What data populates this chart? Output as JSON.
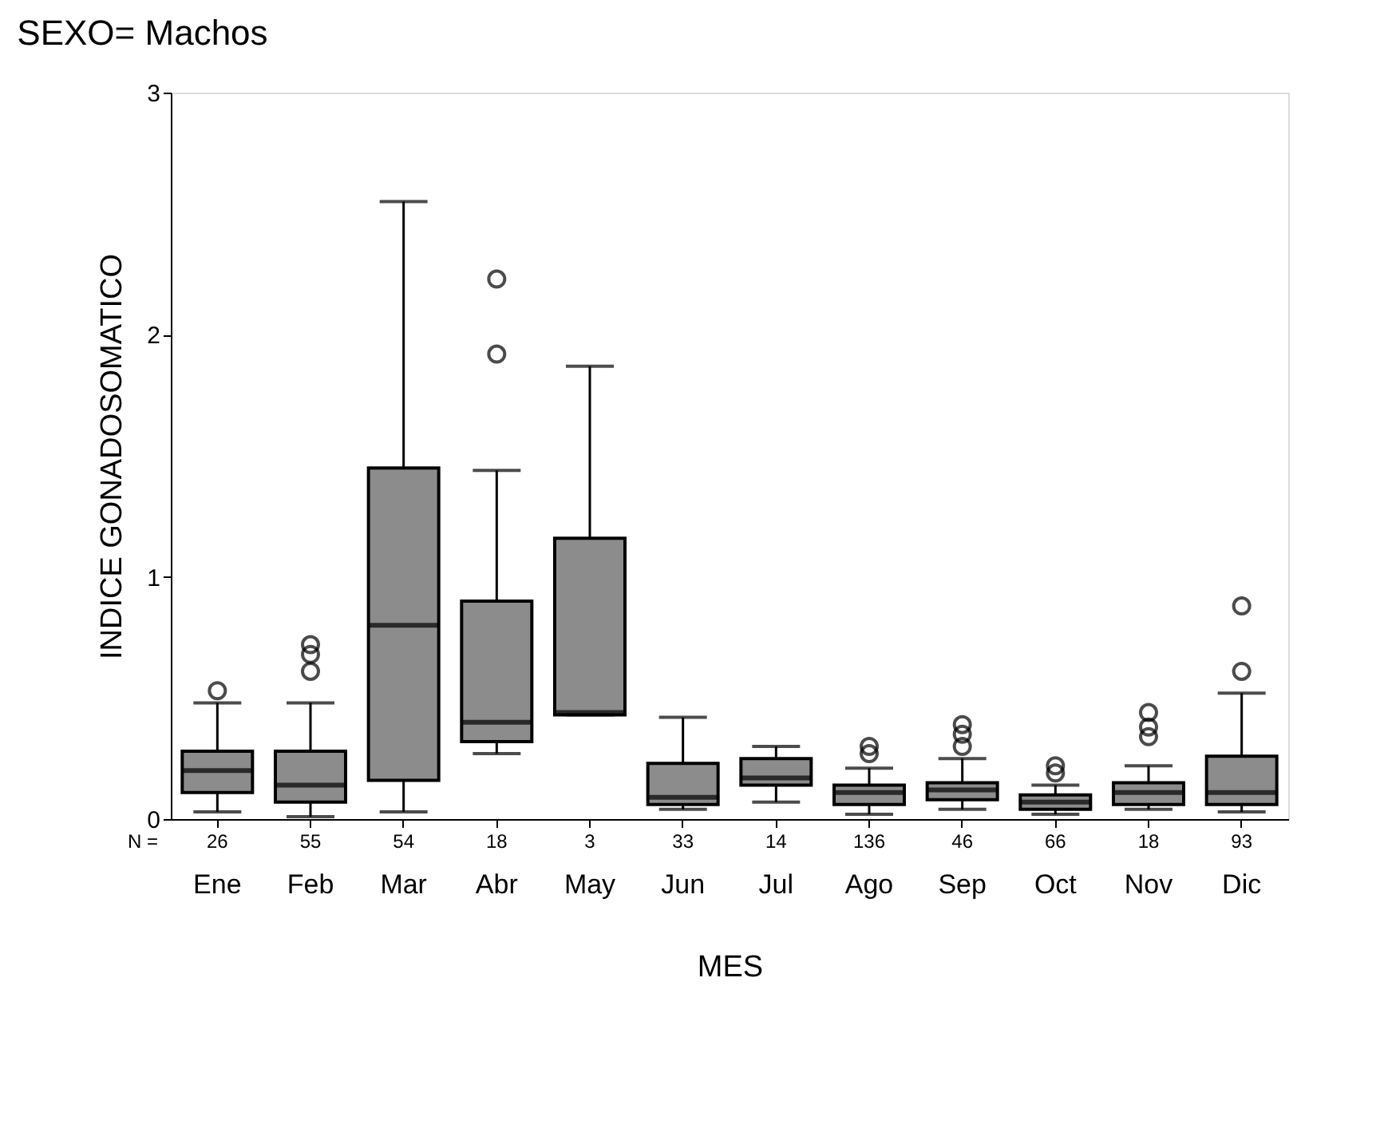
{
  "chart_data": {
    "type": "box",
    "title": "SEXO= Machos",
    "xlabel": "MES",
    "ylabel": "INDICE GONADOSOMATICO",
    "categories": [
      "Ene",
      "Feb",
      "Mar",
      "Abr",
      "May",
      "Jun",
      "Jul",
      "Ago",
      "Sep",
      "Oct",
      "Nov",
      "Dic"
    ],
    "boxes": [
      {
        "low": 0.03,
        "q1": 0.11,
        "median": 0.2,
        "q3": 0.28,
        "high": 0.48,
        "outliers": [
          0.53
        ]
      },
      {
        "low": 0.01,
        "q1": 0.07,
        "median": 0.14,
        "q3": 0.28,
        "high": 0.48,
        "outliers": [
          0.61,
          0.68,
          0.72
        ]
      },
      {
        "low": 0.03,
        "q1": 0.16,
        "median": 0.8,
        "q3": 1.45,
        "high": 2.55
      },
      {
        "low": 0.27,
        "q1": 0.32,
        "median": 0.4,
        "q3": 0.9,
        "high": 1.44,
        "outliers": [
          1.92,
          2.23
        ]
      },
      {
        "low": 0.43,
        "q1": 0.43,
        "median": 0.44,
        "q3": 1.16,
        "high": 1.87
      },
      {
        "low": 0.04,
        "q1": 0.06,
        "median": 0.09,
        "q3": 0.23,
        "high": 0.42
      },
      {
        "low": 0.07,
        "q1": 0.14,
        "median": 0.17,
        "q3": 0.25,
        "high": 0.3
      },
      {
        "low": 0.02,
        "q1": 0.06,
        "median": 0.11,
        "q3": 0.14,
        "high": 0.21,
        "outliers": [
          0.27,
          0.3
        ]
      },
      {
        "low": 0.04,
        "q1": 0.08,
        "median": 0.12,
        "q3": 0.15,
        "high": 0.25,
        "outliers": [
          0.3,
          0.35,
          0.39
        ]
      },
      {
        "low": 0.02,
        "q1": 0.04,
        "median": 0.07,
        "q3": 0.1,
        "high": 0.14,
        "outliers": [
          0.19,
          0.22
        ]
      },
      {
        "low": 0.04,
        "q1": 0.06,
        "median": 0.11,
        "q3": 0.15,
        "high": 0.22,
        "outliers": [
          0.34,
          0.38,
          0.44
        ]
      },
      {
        "low": 0.03,
        "q1": 0.06,
        "median": 0.11,
        "q3": 0.26,
        "high": 0.52,
        "outliers": [
          0.61,
          0.88
        ]
      }
    ],
    "color": "#8c8c8c",
    "ylim": [
      0,
      3
    ],
    "yticks": [
      0,
      1,
      2,
      3
    ],
    "annotations": [
      "N =",
      "26",
      "55",
      "54",
      "18",
      "3",
      "33",
      "14",
      "136",
      "46",
      "66",
      "18",
      "93"
    ]
  }
}
